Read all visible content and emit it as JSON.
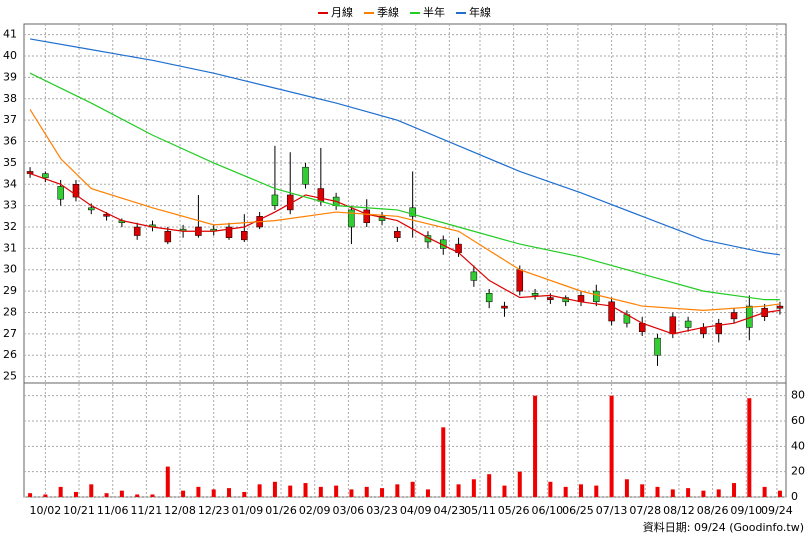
{
  "chart_data": {
    "type": "candlestick",
    "up_color": "#dd0000",
    "down_color": "#33cc33",
    "grid": true,
    "xlim": [
      -1,
      246
    ],
    "xticks": [
      {
        "value": 5,
        "label": "10/02"
      },
      {
        "value": 16,
        "label": "10/21"
      },
      {
        "value": 27,
        "label": "11/06"
      },
      {
        "value": 38,
        "label": "11/21"
      },
      {
        "value": 49,
        "label": "12/08"
      },
      {
        "value": 60,
        "label": "12/23"
      },
      {
        "value": 71,
        "label": "01/09"
      },
      {
        "value": 82,
        "label": "01/26"
      },
      {
        "value": 93,
        "label": "02/09"
      },
      {
        "value": 104,
        "label": "03/06"
      },
      {
        "value": 115,
        "label": "03/23"
      },
      {
        "value": 126,
        "label": "04/09"
      },
      {
        "value": 137,
        "label": "04/23"
      },
      {
        "value": 147,
        "label": "05/11"
      },
      {
        "value": 158,
        "label": "05/26"
      },
      {
        "value": 169,
        "label": "06/10"
      },
      {
        "value": 179,
        "label": "06/25"
      },
      {
        "value": 190,
        "label": "07/13"
      },
      {
        "value": 201,
        "label": "07/28"
      },
      {
        "value": 212,
        "label": "08/12"
      },
      {
        "value": 223,
        "label": "08/26"
      },
      {
        "value": 234,
        "label": "09/10"
      },
      {
        "value": 244,
        "label": "09/24"
      }
    ],
    "ylim": [
      24.7,
      41.5
    ],
    "yticks": [
      25,
      26,
      27,
      28,
      29,
      30,
      31,
      32,
      33,
      34,
      35,
      36,
      37,
      38,
      39,
      40,
      41
    ],
    "candles": {
      "x": [
        0,
        5,
        10,
        15,
        20,
        25,
        30,
        35,
        40,
        45,
        50,
        55,
        60,
        65,
        70,
        75,
        80,
        85,
        90,
        95,
        100,
        105,
        110,
        115,
        120,
        125,
        130,
        135,
        140,
        145,
        150,
        155,
        160,
        165,
        170,
        175,
        180,
        185,
        190,
        195,
        200,
        205,
        210,
        215,
        220,
        225,
        230,
        235,
        240,
        245
      ],
      "open": [
        34.5,
        34.5,
        33.9,
        33.4,
        32.9,
        32.5,
        32.3,
        31.6,
        32.1,
        31.3,
        31.9,
        31.6,
        31.9,
        31.5,
        31.4,
        32.0,
        33.5,
        32.8,
        34.8,
        33.2,
        33.4,
        32.8,
        32.2,
        32.5,
        31.5,
        32.9,
        31.6,
        31.4,
        30.8,
        29.9,
        28.9,
        28.2,
        29.0,
        28.9,
        28.6,
        28.7,
        28.5,
        29.0,
        27.6,
        27.9,
        27.1,
        26.8,
        27.0,
        27.6,
        27.0,
        27.0,
        27.7,
        28.3,
        27.8,
        28.2
      ],
      "high": [
        34.8,
        34.6,
        34.2,
        34.2,
        33.1,
        32.7,
        32.4,
        32.2,
        32.3,
        32.0,
        32.1,
        33.5,
        32.1,
        32.2,
        32.6,
        32.7,
        35.8,
        35.5,
        35.0,
        35.7,
        33.6,
        33.0,
        33.3,
        32.7,
        32.0,
        34.6,
        31.8,
        31.6,
        31.5,
        30.2,
        29.1,
        28.5,
        30.2,
        29.1,
        28.9,
        28.8,
        29.0,
        29.3,
        28.7,
        28.1,
        27.8,
        27.0,
        28.0,
        27.8,
        27.5,
        27.7,
        28.2,
        28.8,
        28.4,
        28.5
      ],
      "low": [
        34.3,
        34.1,
        33.0,
        33.2,
        32.6,
        32.3,
        32.0,
        31.4,
        31.8,
        31.2,
        31.5,
        31.5,
        31.6,
        31.4,
        31.3,
        31.9,
        32.8,
        32.6,
        33.8,
        33.0,
        32.8,
        31.2,
        32.0,
        32.1,
        31.3,
        31.5,
        31.0,
        30.7,
        30.6,
        29.2,
        28.2,
        27.8,
        28.8,
        28.6,
        28.4,
        28.3,
        28.3,
        28.3,
        27.4,
        27.3,
        26.9,
        25.5,
        26.8,
        27.1,
        26.8,
        26.6,
        27.5,
        26.7,
        27.6,
        27.9
      ],
      "close": [
        34.6,
        34.3,
        33.3,
        34.0,
        32.8,
        32.6,
        32.2,
        32.0,
        32.0,
        31.8,
        31.8,
        32.0,
        31.8,
        32.0,
        31.8,
        32.5,
        33.0,
        33.5,
        34.0,
        33.8,
        33.0,
        32.0,
        32.8,
        32.3,
        31.8,
        32.5,
        31.3,
        31.0,
        31.2,
        29.5,
        28.5,
        28.3,
        30.0,
        28.8,
        28.7,
        28.5,
        28.8,
        28.5,
        28.5,
        27.5,
        27.5,
        26.0,
        27.8,
        27.3,
        27.3,
        27.5,
        28.0,
        27.3,
        28.2,
        28.3
      ]
    },
    "series": [
      {
        "name": "月線",
        "color": "#dd0000",
        "x": [
          0,
          10,
          20,
          30,
          40,
          50,
          60,
          70,
          80,
          90,
          100,
          110,
          120,
          130,
          140,
          150,
          160,
          170,
          180,
          190,
          200,
          210,
          220,
          230,
          240,
          245
        ],
        "values": [
          34.5,
          34.0,
          33.0,
          32.3,
          32.0,
          31.8,
          31.8,
          32.0,
          32.7,
          33.5,
          33.2,
          32.6,
          32.3,
          31.5,
          30.8,
          29.5,
          28.7,
          28.8,
          28.5,
          28.3,
          27.5,
          27.0,
          27.3,
          27.5,
          28.0,
          28.1
        ]
      },
      {
        "name": "季線",
        "color": "#ff7f00",
        "x": [
          0,
          10,
          20,
          40,
          60,
          80,
          100,
          120,
          140,
          160,
          180,
          200,
          220,
          240,
          245
        ],
        "values": [
          37.5,
          35.2,
          33.8,
          32.9,
          32.1,
          32.3,
          32.7,
          32.5,
          31.8,
          30.0,
          29.0,
          28.3,
          28.1,
          28.3,
          28.4
        ]
      },
      {
        "name": "半年",
        "color": "#22cc22",
        "x": [
          0,
          20,
          40,
          60,
          80,
          100,
          120,
          140,
          160,
          180,
          200,
          220,
          240,
          245
        ],
        "values": [
          39.2,
          37.8,
          36.3,
          35.0,
          33.8,
          33.0,
          32.8,
          32.0,
          31.2,
          30.6,
          29.8,
          29.0,
          28.6,
          28.6
        ]
      },
      {
        "name": "年線",
        "color": "#1f6fd0",
        "x": [
          0,
          20,
          40,
          60,
          80,
          100,
          120,
          140,
          160,
          180,
          200,
          220,
          240,
          245
        ],
        "values": [
          40.8,
          40.3,
          39.8,
          39.2,
          38.5,
          37.8,
          37.0,
          35.8,
          34.6,
          33.6,
          32.5,
          31.4,
          30.8,
          30.7
        ]
      }
    ],
    "volume": {
      "color": "#ee0000",
      "ylim": [
        0,
        90
      ],
      "yticks": [
        0,
        20,
        40,
        60,
        80
      ],
      "values": [
        3,
        2,
        8,
        4,
        10,
        3,
        5,
        2,
        2,
        24,
        5,
        8,
        6,
        7,
        4,
        10,
        12,
        9,
        11,
        8,
        9,
        6,
        8,
        7,
        10,
        12,
        6,
        55,
        10,
        14,
        18,
        9,
        20,
        80,
        12,
        8,
        10,
        9,
        80,
        14,
        10,
        8,
        6,
        7,
        5,
        6,
        11,
        78,
        8,
        5
      ]
    },
    "footer": "資料日期: 09/24 (Goodinfo.tw)"
  }
}
